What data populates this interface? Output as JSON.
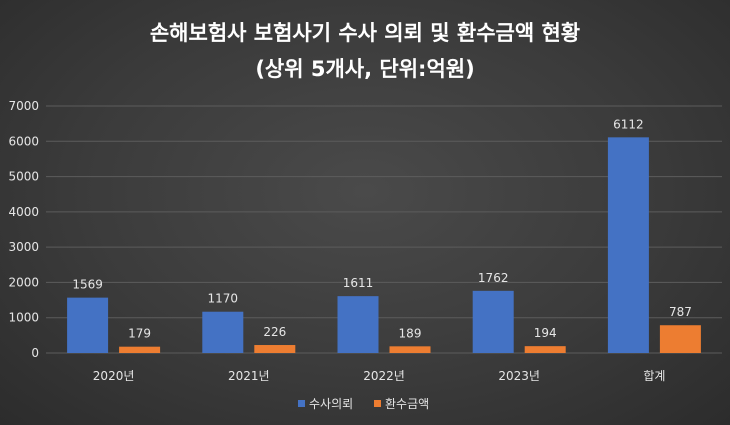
{
  "chart_data": {
    "type": "bar",
    "title": "손해보험사 보험사기 수사 의뢰 및 환수금액 현황",
    "subtitle": "(상위 5개사, 단위:억원)",
    "categories": [
      "2020년",
      "2021년",
      "2022년",
      "2023년",
      "합계"
    ],
    "series": [
      {
        "name": "수사의뢰",
        "values": [
          1569,
          1170,
          1611,
          1762,
          6112
        ],
        "color": "#4472c4"
      },
      {
        "name": "환수금액",
        "values": [
          179,
          226,
          189,
          194,
          787
        ],
        "color": "#ed7d31"
      }
    ],
    "ylim": [
      0,
      7000
    ],
    "yticks": [
      0,
      1000,
      2000,
      3000,
      4000,
      5000,
      6000,
      7000
    ],
    "grid": true,
    "legend_position": "bottom"
  }
}
